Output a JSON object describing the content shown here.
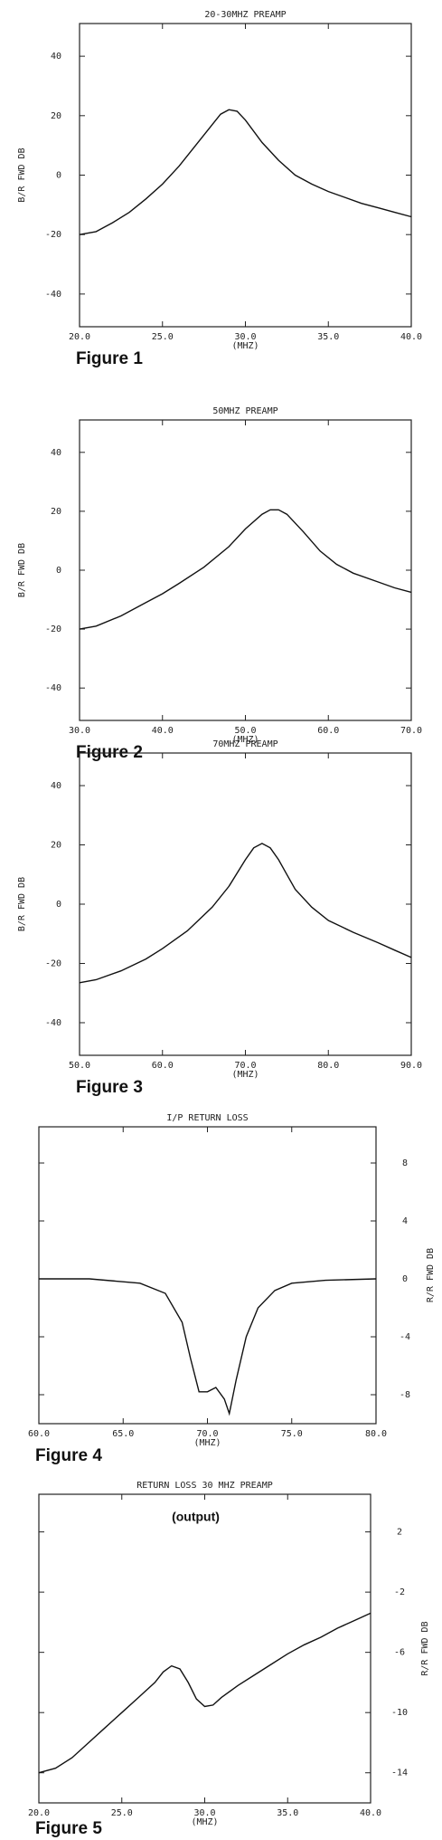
{
  "chart_data": [
    {
      "type": "line",
      "title": "20-30MHZ PREAMP",
      "xlabel": "(MHZ)",
      "ylabel": "B/R FWD DB",
      "figure_label": "Figure 1",
      "yaxis_side": "left",
      "x": [
        20,
        21,
        22,
        23,
        24,
        25,
        26,
        27,
        28,
        28.5,
        29,
        29.5,
        30,
        31,
        32,
        33,
        34,
        35,
        36,
        37,
        38,
        39,
        40
      ],
      "values": [
        -20,
        -19,
        -16,
        -12.5,
        -8,
        -3,
        3,
        10,
        17,
        20.5,
        22,
        21.5,
        18.5,
        11,
        5,
        0,
        -3,
        -5.5,
        -7.5,
        -9.5,
        -11,
        -12.5,
        -14
      ],
      "color": "#111111",
      "xlim": [
        20,
        40
      ],
      "ylim": [
        -51,
        51
      ],
      "xticks": [
        {
          "value": 20,
          "label": "20.0"
        },
        {
          "value": 25,
          "label": "25.0"
        },
        {
          "value": 30,
          "label": "30.0"
        },
        {
          "value": 35,
          "label": "35.0"
        },
        {
          "value": 40,
          "label": "40.0"
        }
      ],
      "yticks": [
        40,
        20,
        0,
        -20,
        -40
      ]
    },
    {
      "type": "line",
      "title": "50MHZ PREAMP",
      "xlabel": "(MHZ)",
      "ylabel": "B/R FWD DB",
      "figure_label": "Figure 2",
      "yaxis_side": "left",
      "x": [
        30,
        32,
        35,
        38,
        40,
        42,
        45,
        48,
        50,
        52,
        53,
        54,
        55,
        57,
        59,
        61,
        63,
        66,
        68,
        70
      ],
      "values": [
        -20,
        -19,
        -15.5,
        -11,
        -8,
        -4.5,
        1,
        8,
        14,
        19,
        20.5,
        20.5,
        19,
        13,
        6.5,
        2,
        -1,
        -4,
        -6,
        -7.5
      ],
      "color": "#111111",
      "xlim": [
        30,
        70
      ],
      "ylim": [
        -51,
        51
      ],
      "xticks": [
        {
          "value": 30,
          "label": "30.0"
        },
        {
          "value": 40,
          "label": "40.0"
        },
        {
          "value": 50,
          "label": "50.0"
        },
        {
          "value": 60,
          "label": "60.0"
        },
        {
          "value": 70,
          "label": "70.0"
        }
      ],
      "yticks": [
        40,
        20,
        0,
        -20,
        -40
      ]
    },
    {
      "type": "line",
      "title": "70MHZ PREAMP",
      "xlabel": "(MHZ)",
      "ylabel": "B/R FWD DB",
      "figure_label": "Figure 3",
      "yaxis_side": "left",
      "x": [
        50,
        52,
        55,
        58,
        60,
        63,
        66,
        68,
        70,
        71,
        72,
        73,
        74,
        75,
        76,
        78,
        80,
        83,
        86,
        88,
        90
      ],
      "values": [
        -26.5,
        -25.5,
        -22.5,
        -18.5,
        -15,
        -9,
        -1,
        6,
        15,
        19,
        20.5,
        19,
        15,
        10,
        5,
        -1,
        -5.5,
        -9.5,
        -13,
        -15.5,
        -18
      ],
      "color": "#111111",
      "xlim": [
        50,
        90
      ],
      "ylim": [
        -51,
        51
      ],
      "xticks": [
        {
          "value": 50,
          "label": "50.0"
        },
        {
          "value": 60,
          "label": "60.0"
        },
        {
          "value": 70,
          "label": "70.0"
        },
        {
          "value": 80,
          "label": "80.0"
        },
        {
          "value": 90,
          "label": "90.0"
        }
      ],
      "yticks": [
        40,
        20,
        0,
        -20,
        -40
      ]
    },
    {
      "type": "line",
      "title": "I/P RETURN LOSS",
      "xlabel": "(MHZ)",
      "ylabel": "R/R FWD DB",
      "figure_label": "Figure 4",
      "yaxis_side": "right",
      "x": [
        60,
        63,
        66,
        67.5,
        68.5,
        69,
        69.5,
        70,
        70.5,
        71,
        71.3,
        71.7,
        72.3,
        73,
        74,
        75,
        77,
        80
      ],
      "values": [
        0,
        0,
        -0.3,
        -1,
        -3,
        -5.5,
        -7.8,
        -7.8,
        -7.5,
        -8.3,
        -9.3,
        -7,
        -4,
        -2,
        -0.8,
        -0.3,
        -0.1,
        0
      ],
      "color": "#111111",
      "xlim": [
        60,
        80
      ],
      "ylim": [
        -10,
        10.5
      ],
      "xticks": [
        {
          "value": 60,
          "label": "60.0"
        },
        {
          "value": 65,
          "label": "65.0"
        },
        {
          "value": 70,
          "label": "70.0"
        },
        {
          "value": 75,
          "label": "75.0"
        },
        {
          "value": 80,
          "label": "80.0"
        }
      ],
      "yticks": [
        8,
        4,
        0,
        -4,
        -8
      ]
    },
    {
      "type": "line",
      "title": "RETURN LOSS 30 MHZ PREAMP",
      "annotation": "(output)",
      "xlabel": "(MHZ)",
      "ylabel": "R/R FWD DB",
      "figure_label": "Figure 5",
      "yaxis_side": "right",
      "x": [
        20,
        21,
        22,
        23,
        24,
        25,
        26,
        27,
        27.5,
        28,
        28.5,
        29,
        29.5,
        30,
        30.5,
        31,
        32,
        33,
        34,
        35,
        36,
        37,
        38,
        39,
        40
      ],
      "values": [
        -14,
        -13.7,
        -13,
        -12,
        -11,
        -10,
        -9,
        -8,
        -7.3,
        -6.9,
        -7.1,
        -8,
        -9.1,
        -9.6,
        -9.5,
        -9,
        -8.2,
        -7.5,
        -6.8,
        -6.1,
        -5.5,
        -5,
        -4.4,
        -3.9,
        -3.4
      ],
      "color": "#111111",
      "xlim": [
        20,
        40
      ],
      "ylim": [
        -16,
        4.5
      ],
      "xticks": [
        {
          "value": 20,
          "label": "20.0"
        },
        {
          "value": 25,
          "label": "25.0"
        },
        {
          "value": 30,
          "label": "30.0"
        },
        {
          "value": 35,
          "label": "35.0"
        },
        {
          "value": 40,
          "label": "40.0"
        }
      ],
      "yticks": [
        2,
        -2,
        -6,
        -10,
        -14
      ]
    }
  ]
}
